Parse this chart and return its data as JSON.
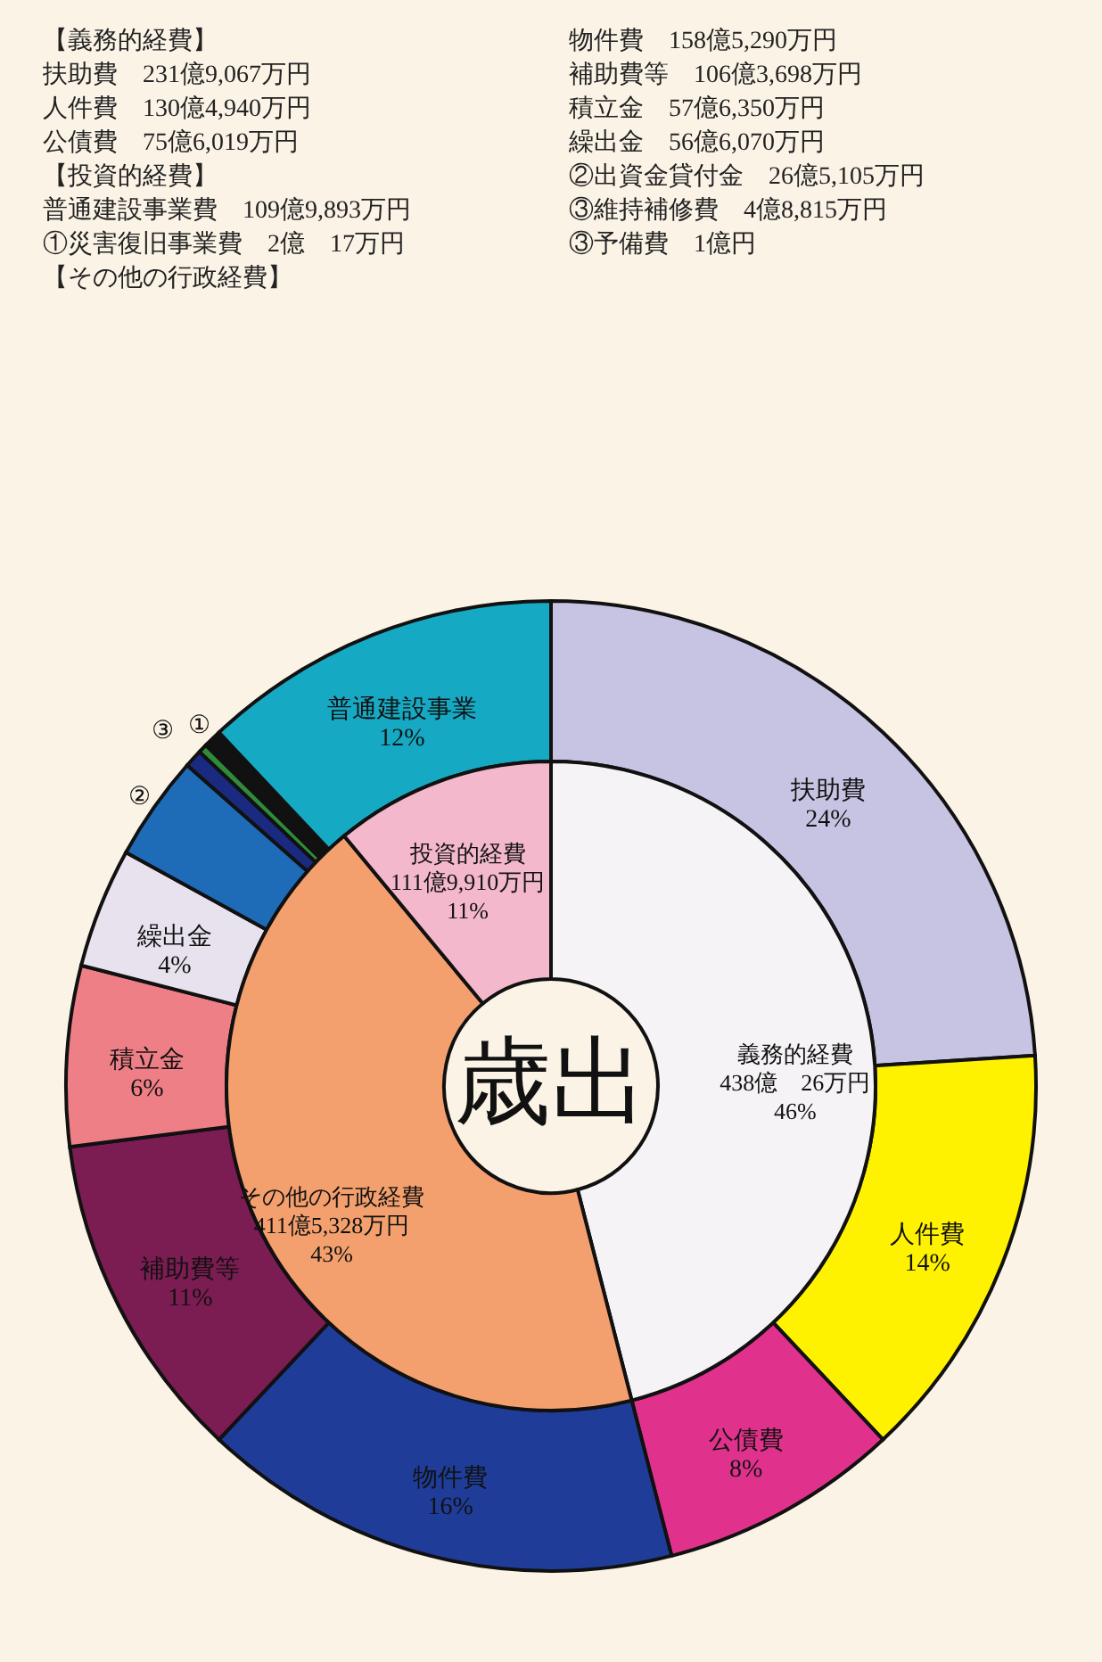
{
  "chart_data": [
    {
      "type": "donut",
      "title": "歳出",
      "categories": [
        "扶助費",
        "人件費",
        "公債費",
        "物件費",
        "補助費等",
        "積立金",
        "繰出金",
        "②",
        "③",
        null,
        "①",
        "普通建設事業"
      ],
      "values": [
        24,
        14,
        8,
        16,
        11,
        6,
        4,
        3.5,
        0.6,
        0.3,
        0.6,
        12
      ],
      "value_labels": [
        "24%",
        "14%",
        "8%",
        "16%",
        "11%",
        "6%",
        "4%",
        null,
        null,
        null,
        null,
        "12%"
      ],
      "colors": [
        "#c7c3e2",
        "#fff200",
        "#e0328c",
        "#1f3d98",
        "#7b1c52",
        "#ef7f86",
        "#e8e2ee",
        "#1e6cb8",
        "#1a2a80",
        "#2f8a3a",
        "#111111",
        "#16a9c4"
      ],
      "annotations": [
        "【義務的経費】",
        "扶助費　231億9,067万円",
        "人件費　130億4,940万円",
        "公債費　75億6,019万円",
        "【投資的経費】",
        "普通建設事業費　109億9,893万円",
        "①災害復旧事業費　2億　17万円",
        "【その他の行政経費】",
        "物件費　158億5,290万円",
        "補助費等　106億3,698万円",
        "積立金　57億6,350万円",
        "繰出金　56億6,070万円",
        "②出資金貸付金　26億5,105万円",
        "③維持補修費　4億8,815万円",
        "③予備費　1億円"
      ]
    },
    {
      "type": "donut",
      "categories": [
        "義務的経費",
        "その他の行政経費",
        "投資的経費"
      ],
      "values": [
        46,
        43,
        11
      ],
      "value_labels": [
        "46%",
        "43%",
        "11%"
      ],
      "colors": [
        "#f5f3f5",
        "#f4a06e",
        "#f4b8cc"
      ],
      "annotations": [
        {
          "text": "438億　26万円",
          "x": "義務的経費"
        },
        {
          "text": "411億5,328万円",
          "x": "その他の行政経費"
        },
        {
          "text": "111億9,910万円",
          "x": "投資的経費"
        }
      ]
    }
  ]
}
